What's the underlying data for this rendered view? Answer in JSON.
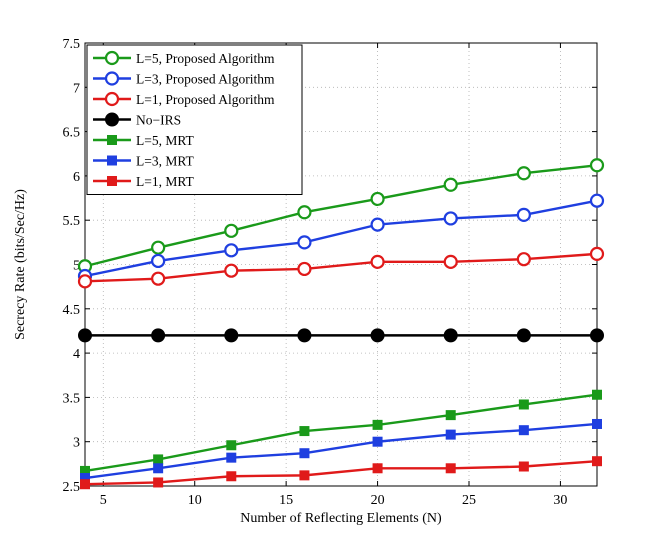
{
  "chart_data": {
    "type": "line",
    "title": "",
    "xlabel": "Number of Reflecting Elements (N)",
    "ylabel": "Secrecy Rate (bits/Sec/Hz)",
    "xlim": [
      4,
      32
    ],
    "ylim": [
      2.5,
      7.5
    ],
    "xticks": [
      "5",
      "10",
      "15",
      "20",
      "25",
      "30"
    ],
    "xtick_values": [
      5,
      10,
      15,
      20,
      25,
      30
    ],
    "yticks": [
      "2.5",
      "3",
      "3.5",
      "4",
      "4.5",
      "5",
      "5.5",
      "6",
      "6.5",
      "7",
      "7.5"
    ],
    "ytick_values": [
      2.5,
      3,
      3.5,
      4,
      4.5,
      5,
      5.5,
      6,
      6.5,
      7,
      7.5
    ],
    "grid": true,
    "legend_position": "top-left",
    "x": [
      4,
      8,
      12,
      16,
      20,
      24,
      28,
      32
    ],
    "series": [
      {
        "name": "L=5, Proposed Algorithm",
        "color": "#1a9a1a",
        "marker": "circle-open",
        "values": [
          4.98,
          5.19,
          5.38,
          5.59,
          5.74,
          5.9,
          6.03,
          6.12
        ]
      },
      {
        "name": "L=3, Proposed Algorithm",
        "color": "#1f3fe0",
        "marker": "circle-open",
        "values": [
          4.87,
          5.04,
          5.16,
          5.25,
          5.45,
          5.52,
          5.56,
          5.72
        ]
      },
      {
        "name": "L=1, Proposed Algorithm",
        "color": "#e01a1a",
        "marker": "circle-open",
        "values": [
          4.81,
          4.84,
          4.93,
          4.95,
          5.03,
          5.03,
          5.06,
          5.12
        ]
      },
      {
        "name": "No−IRS",
        "color": "#000000",
        "marker": "circle-filled",
        "values": [
          4.2,
          4.2,
          4.2,
          4.2,
          4.2,
          4.2,
          4.2,
          4.2
        ]
      },
      {
        "name": "L=5, MRT",
        "color": "#1a9a1a",
        "marker": "square-filled",
        "values": [
          2.67,
          2.8,
          2.96,
          3.12,
          3.19,
          3.3,
          3.42,
          3.53
        ]
      },
      {
        "name": "L=3, MRT",
        "color": "#1f3fe0",
        "marker": "square-filled",
        "values": [
          2.59,
          2.7,
          2.82,
          2.87,
          3.0,
          3.08,
          3.13,
          3.2
        ]
      },
      {
        "name": "L=1, MRT",
        "color": "#e01a1a",
        "marker": "square-filled",
        "values": [
          2.52,
          2.54,
          2.61,
          2.62,
          2.7,
          2.7,
          2.72,
          2.78
        ]
      }
    ]
  }
}
